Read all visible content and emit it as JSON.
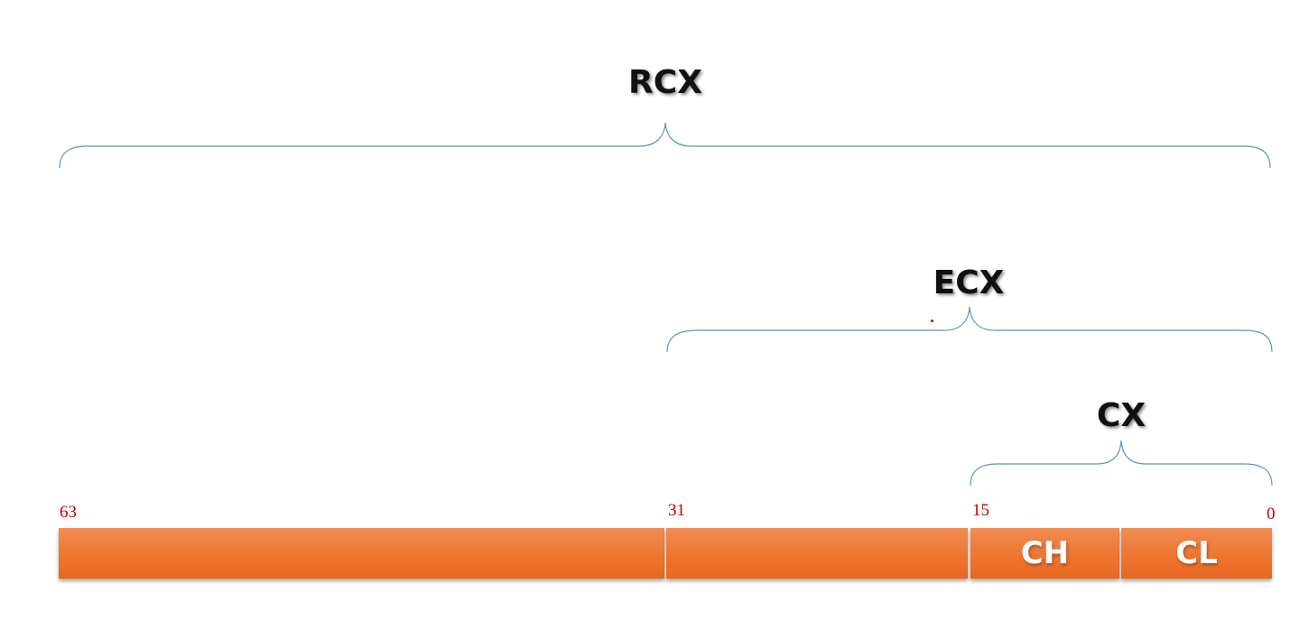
{
  "labels": {
    "rcx": "RCX",
    "ecx": "ECX",
    "cx": "CX"
  },
  "bits": {
    "b63": "63",
    "b31": "31",
    "b15": "15",
    "b0": "0"
  },
  "segments": {
    "ch": "CH",
    "cl": "CL"
  },
  "colors": {
    "segment": "#ee7630",
    "brace": "#5b95b8",
    "bit_number": "#c00000"
  }
}
